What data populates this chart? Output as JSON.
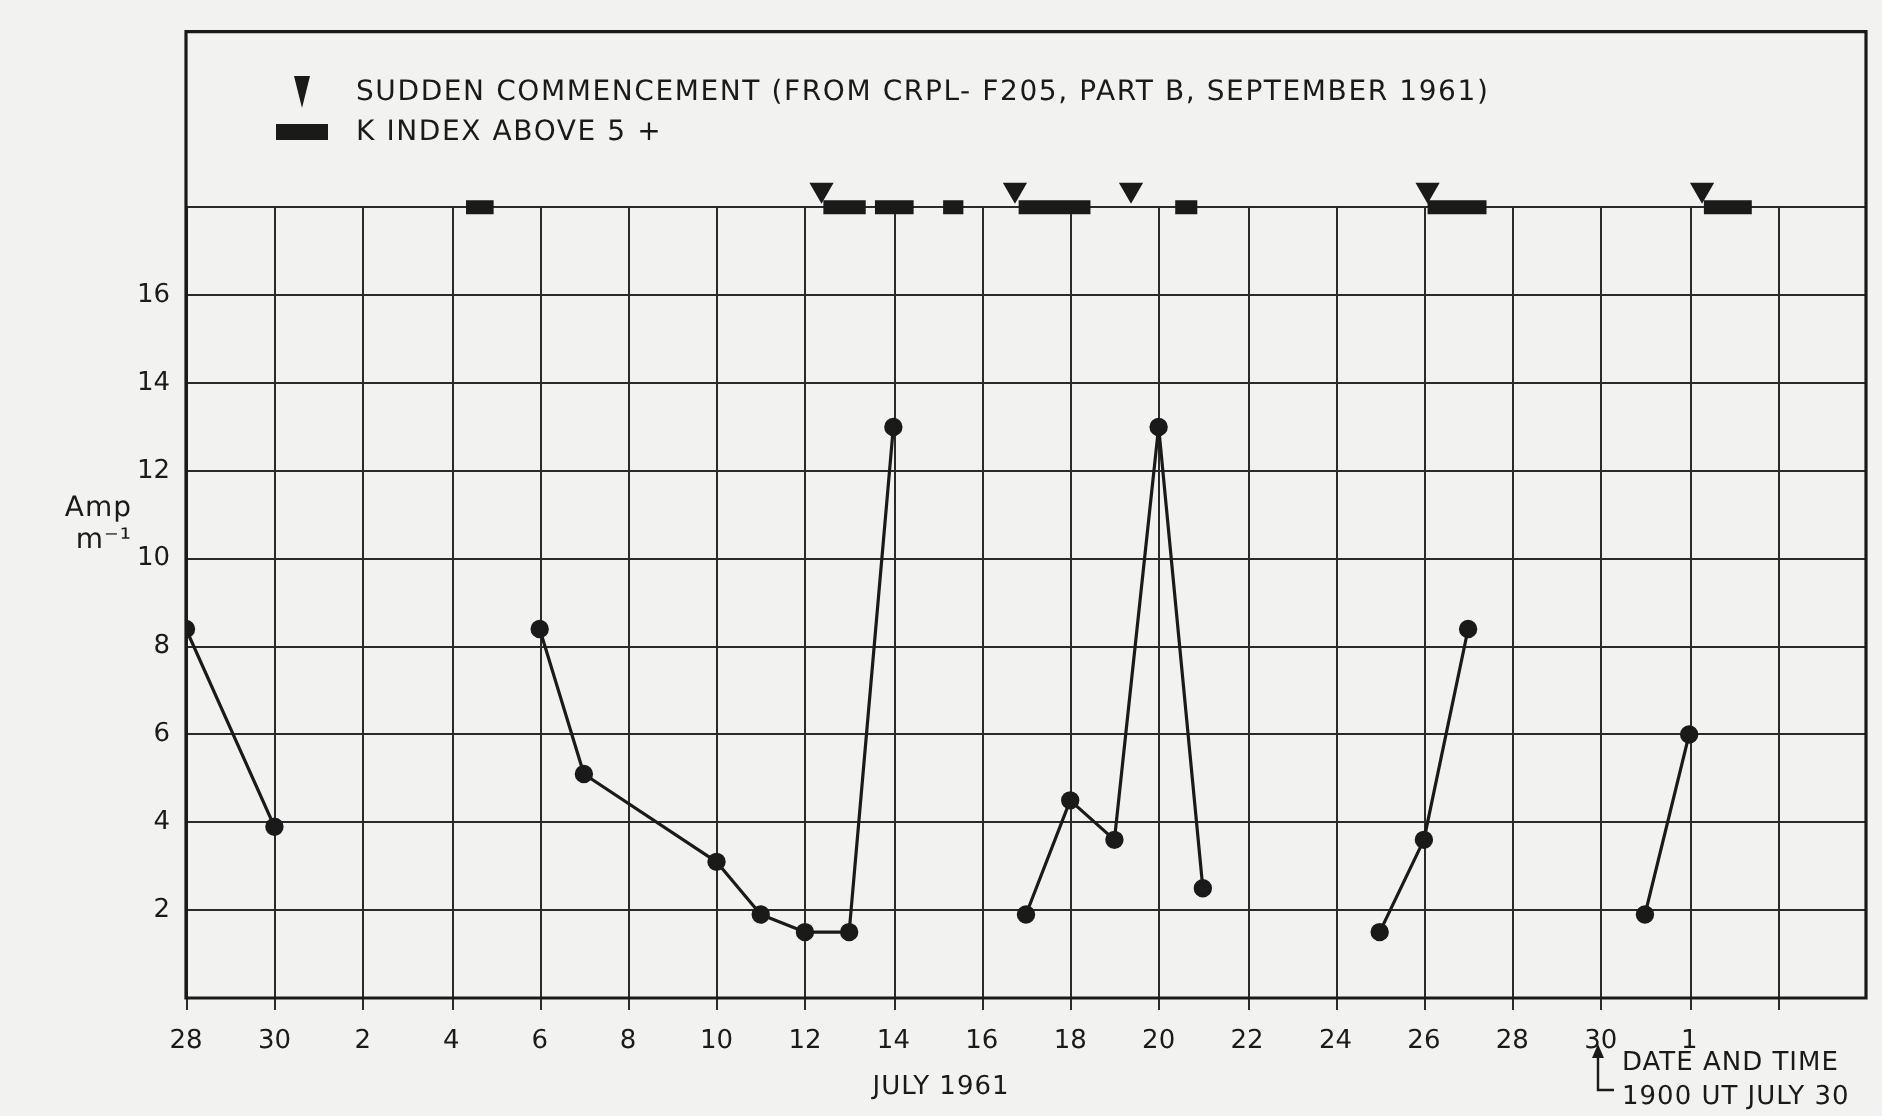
{
  "chart_data": {
    "type": "line",
    "xlabel": "JULY 1961",
    "ylabel": "Amp m⁻¹",
    "annotations": [
      "DATE AND TIME 1900 UT JULY 30"
    ],
    "xlim": [
      "1961-06-28",
      "1961-08-05"
    ],
    "xticks": [
      {
        "value": "1961-06-28",
        "label": "28"
      },
      {
        "value": "1961-06-30",
        "label": "30"
      },
      {
        "value": "1961-07-02",
        "label": "2"
      },
      {
        "value": "1961-07-04",
        "label": "4"
      },
      {
        "value": "1961-07-06",
        "label": "6"
      },
      {
        "value": "1961-07-08",
        "label": "8"
      },
      {
        "value": "1961-07-10",
        "label": "10"
      },
      {
        "value": "1961-07-12",
        "label": "12"
      },
      {
        "value": "1961-07-14",
        "label": "14"
      },
      {
        "value": "1961-07-16",
        "label": "16"
      },
      {
        "value": "1961-07-18",
        "label": "18"
      },
      {
        "value": "1961-07-20",
        "label": "20"
      },
      {
        "value": "1961-07-22",
        "label": "22"
      },
      {
        "value": "1961-07-24",
        "label": "24"
      },
      {
        "value": "1961-07-26",
        "label": "26"
      },
      {
        "value": "1961-07-28",
        "label": "28"
      },
      {
        "value": "1961-07-30",
        "label": "30"
      },
      {
        "value": "1961-08-01",
        "label": "1"
      },
      {
        "value": "1961-08-03",
        "label": null
      }
    ],
    "ylim": [
      0,
      22
    ],
    "yticks": [
      2,
      4,
      6,
      8,
      10,
      12,
      14,
      16,
      {
        "value": 18,
        "label": null
      }
    ],
    "grid": true,
    "legend": "top left",
    "series": [
      {
        "color": "#1a1a1a",
        "marker": "circle",
        "x": [
          "1961-06-28",
          "1961-06-30",
          null,
          "1961-07-06",
          "1961-07-07",
          "1961-07-10",
          "1961-07-11",
          "1961-07-12",
          "1961-07-13",
          "1961-07-14",
          null,
          "1961-07-17",
          "1961-07-18",
          "1961-07-19",
          "1961-07-20",
          "1961-07-21",
          null,
          "1961-07-25",
          "1961-07-26",
          "1961-07-27",
          null,
          "1961-07-31",
          "1961-08-01"
        ],
        "values": [
          8.4,
          3.9,
          null,
          8.4,
          5.1,
          3.1,
          1.9,
          1.5,
          1.5,
          13.0,
          null,
          1.9,
          4.5,
          3.6,
          13.0,
          2.5,
          null,
          1.5,
          3.6,
          8.4,
          null,
          1.9,
          6.0
        ]
      },
      {
        "type": "scatter",
        "name": "SUDDEN COMMENCEMENT (FROM CRPL- F205, PART B, SEPTEMBER 1961)",
        "color": "#1a1a1a",
        "marker": "triangle",
        "x": [
          "1961-07-12T09:00",
          "1961-07-16T18:00",
          "1961-07-19T09:00",
          "1961-07-26T02:00",
          "1961-08-01T07:00"
        ],
        "values": [
          18.4,
          18.4,
          18.4,
          18.4,
          18.4
        ]
      },
      {
        "type": "line",
        "name": "K INDEX ABOVE 5 +",
        "color": "#1a1a1a",
        "marker": "none",
        "x": [
          "1961-07-04T08:00",
          "1961-07-04T23:00",
          null,
          "1961-07-12T10:00",
          "1961-07-13T09:00",
          null,
          "1961-07-13T14:00",
          "1961-07-14T11:00",
          null,
          "1961-07-15T03:00",
          "1961-07-15T14:00",
          null,
          "1961-07-16T20:00",
          "1961-07-18T11:00",
          null,
          "1961-07-20T09:00",
          "1961-07-20T21:00",
          null,
          "1961-07-26T02:00",
          "1961-07-27T10:00",
          null,
          "1961-08-01T08:00",
          "1961-08-02T10:00"
        ],
        "values": [
          18,
          18,
          null,
          18,
          18,
          null,
          18,
          18,
          null,
          18,
          18,
          null,
          18,
          18,
          null,
          18,
          18,
          null,
          18,
          18,
          null,
          18,
          18
        ]
      }
    ]
  }
}
